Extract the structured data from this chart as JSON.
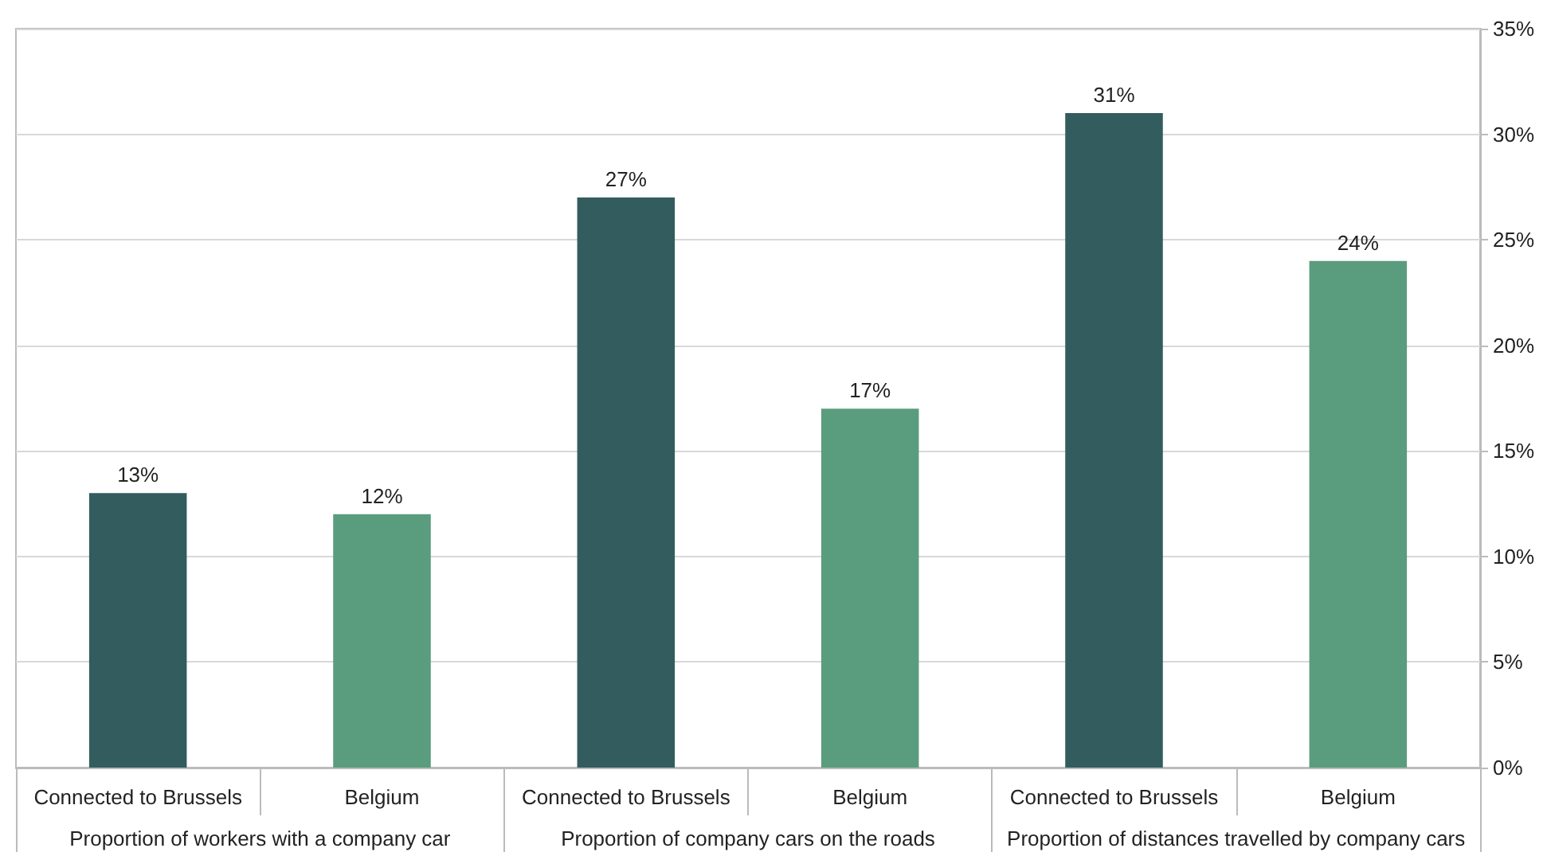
{
  "chart_data": {
    "type": "bar",
    "categories": [
      "Proportion of workers with a company car",
      "Proportion of company cars on the roads",
      "Proportion of distances travelled by company cars"
    ],
    "series": [
      {
        "name": "Connected to Brussels",
        "color": "#335c5e",
        "values": [
          13,
          27,
          31
        ],
        "value_labels": [
          "13%",
          "27%",
          "31%"
        ]
      },
      {
        "name": "Belgium",
        "color": "#5a9c7e",
        "values": [
          12,
          17,
          24
        ],
        "value_labels": [
          "12%",
          "17%",
          "24%"
        ]
      }
    ],
    "ylim": [
      0,
      35
    ],
    "yticks": [
      {
        "value": 0,
        "label": "0%"
      },
      {
        "value": 5,
        "label": "5%"
      },
      {
        "value": 10,
        "label": "10%"
      },
      {
        "value": 15,
        "label": "15%"
      },
      {
        "value": 20,
        "label": "20%"
      },
      {
        "value": 25,
        "label": "25%"
      },
      {
        "value": 30,
        "label": "30%"
      },
      {
        "value": 35,
        "label": "35%"
      }
    ],
    "grid": "y"
  }
}
